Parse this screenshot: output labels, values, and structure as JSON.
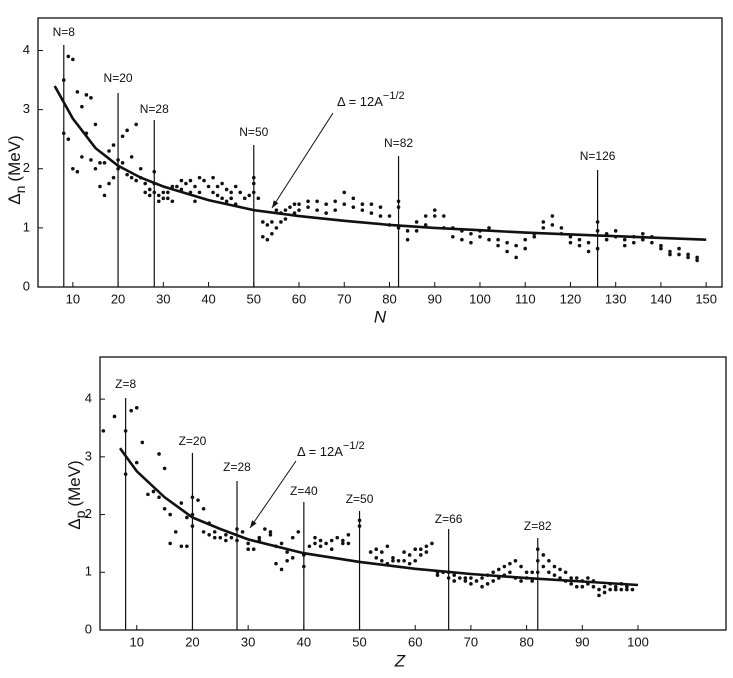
{
  "chart_data": [
    {
      "type": "scatter",
      "xlabel": "N",
      "ylabel_symbol": "Δ",
      "ylabel_subscript": "n",
      "ylabel_unit": "(MeV)",
      "xlim": [
        2.3,
        153.5
      ],
      "ylim": [
        0,
        4.55
      ],
      "xticks": [
        10,
        20,
        30,
        40,
        50,
        60,
        70,
        80,
        90,
        100,
        110,
        120,
        130,
        140,
        150
      ],
      "yticks": [
        0,
        1,
        2,
        3,
        4
      ],
      "color": "#111111",
      "x": [
        8,
        8,
        9,
        9,
        10,
        10,
        11,
        11,
        12,
        12,
        13,
        13,
        14,
        14,
        15,
        15,
        16,
        16,
        17,
        17,
        18,
        18,
        19,
        19,
        20,
        20,
        21,
        21,
        22,
        22,
        23,
        23,
        24,
        24,
        25,
        25,
        26,
        26,
        27,
        27,
        28,
        28,
        28,
        29,
        29,
        30,
        30,
        31,
        31,
        32,
        32,
        33,
        34,
        34,
        35,
        36,
        36,
        37,
        37,
        38,
        38,
        39,
        40,
        41,
        41,
        42,
        42,
        43,
        43,
        44,
        44,
        45,
        45,
        46,
        46,
        47,
        48,
        49,
        50,
        50,
        50,
        51,
        52,
        52,
        53,
        53,
        54,
        54,
        55,
        55,
        56,
        56,
        57,
        57,
        58,
        59,
        59,
        60,
        60,
        62,
        62,
        64,
        64,
        66,
        66,
        68,
        68,
        70,
        70,
        72,
        72,
        74,
        74,
        76,
        76,
        78,
        78,
        80,
        80,
        82,
        82,
        82,
        84,
        84,
        86,
        86,
        88,
        88,
        90,
        90,
        92,
        92,
        94,
        94,
        96,
        96,
        98,
        98,
        100,
        100,
        102,
        102,
        104,
        104,
        106,
        106,
        108,
        108,
        110,
        110,
        112,
        112,
        114,
        114,
        116,
        116,
        118,
        118,
        120,
        120,
        122,
        122,
        124,
        124,
        126,
        126,
        126,
        128,
        128,
        130,
        130,
        132,
        132,
        134,
        134,
        136,
        136,
        138,
        138,
        140,
        140,
        142,
        142,
        144,
        144,
        146,
        146,
        148,
        148
      ],
      "values": [
        3.5,
        2.6,
        3.9,
        2.5,
        3.85,
        2.0,
        3.3,
        1.95,
        3.05,
        2.2,
        3.25,
        2.6,
        3.2,
        2.15,
        2.75,
        2.0,
        2.1,
        1.7,
        1.55,
        2.1,
        2.3,
        1.75,
        2.4,
        1.85,
        2.15,
        2.0,
        2.55,
        2.1,
        2.65,
        1.9,
        2.2,
        1.85,
        2.75,
        1.8,
        2.0,
        1.85,
        1.6,
        1.75,
        1.55,
        1.65,
        1.95,
        1.75,
        1.6,
        1.55,
        1.45,
        1.5,
        1.6,
        1.5,
        1.6,
        1.45,
        1.7,
        1.7,
        1.65,
        1.8,
        1.75,
        1.8,
        1.6,
        1.7,
        1.45,
        1.85,
        1.6,
        1.8,
        1.7,
        1.85,
        1.6,
        1.7,
        1.55,
        1.75,
        1.5,
        1.65,
        1.45,
        1.6,
        1.5,
        1.7,
        1.4,
        1.6,
        1.5,
        1.55,
        1.85,
        1.75,
        1.6,
        1.5,
        1.1,
        0.85,
        1.05,
        0.8,
        1.1,
        0.9,
        1.3,
        1.0,
        1.25,
        1.1,
        1.3,
        1.15,
        1.35,
        1.4,
        1.25,
        1.4,
        1.3,
        1.45,
        1.35,
        1.45,
        1.3,
        1.4,
        1.25,
        1.45,
        1.3,
        1.6,
        1.4,
        1.5,
        1.35,
        1.4,
        1.3,
        1.4,
        1.25,
        1.35,
        1.2,
        1.2,
        1.05,
        1.45,
        1.35,
        1.0,
        0.95,
        0.8,
        1.1,
        0.95,
        1.2,
        1.05,
        1.3,
        1.2,
        1.2,
        1.0,
        1.0,
        0.85,
        0.95,
        0.8,
        0.9,
        0.75,
        0.95,
        0.85,
        1.0,
        0.8,
        0.8,
        0.7,
        0.75,
        0.6,
        0.7,
        0.5,
        0.8,
        0.65,
        0.85,
        0.9,
        1.1,
        1.0,
        1.2,
        1.05,
        1.0,
        0.9,
        0.85,
        0.75,
        0.8,
        0.7,
        0.75,
        0.6,
        1.1,
        0.95,
        0.65,
        0.9,
        0.8,
        0.95,
        0.85,
        0.8,
        0.7,
        0.75,
        0.85,
        0.9,
        0.8,
        0.85,
        0.75,
        0.7,
        0.65,
        0.6,
        0.55,
        0.65,
        0.55,
        0.55,
        0.5,
        0.5,
        0.45
      ],
      "curve": {
        "x": [
          6,
          10,
          15,
          20,
          25,
          30,
          40,
          50,
          60,
          70,
          80,
          90,
          100,
          110,
          120,
          130,
          140,
          150
        ],
        "values": [
          3.4,
          2.85,
          2.35,
          2.05,
          1.85,
          1.7,
          1.47,
          1.3,
          1.2,
          1.12,
          1.05,
          1.0,
          0.96,
          0.92,
          0.89,
          0.86,
          0.83,
          0.8
        ]
      },
      "magic": [
        {
          "x": 8,
          "label": "N=8"
        },
        {
          "x": 20,
          "label": "N=20"
        },
        {
          "x": 28,
          "label": "N=28"
        },
        {
          "x": 50,
          "label": "N=50"
        },
        {
          "x": 82,
          "label": "N=82"
        },
        {
          "x": 126,
          "label": "N=126"
        }
      ],
      "annotation": {
        "text": "Δ = 12A",
        "superscript": "−1/2"
      }
    },
    {
      "type": "scatter",
      "xlabel": "Z",
      "ylabel_symbol": "Δ",
      "ylabel_subscript": "p",
      "ylabel_unit": "(MeV)",
      "xlim": [
        3.4,
        115.8
      ],
      "ylim": [
        0,
        4.73
      ],
      "xticks": [
        10,
        20,
        30,
        40,
        50,
        60,
        70,
        80,
        90,
        100
      ],
      "yticks": [
        0,
        1,
        2,
        3,
        4
      ],
      "color": "#111111",
      "x": [
        4,
        6,
        8,
        8,
        9,
        10,
        10,
        11,
        12,
        13,
        14,
        14,
        15,
        15,
        16,
        16,
        17,
        18,
        18,
        19,
        19,
        20,
        20,
        20,
        21,
        22,
        22,
        23,
        23,
        24,
        24,
        25,
        26,
        26,
        27,
        28,
        28,
        29,
        30,
        30,
        31,
        32,
        32,
        33,
        34,
        34,
        35,
        35,
        36,
        36,
        37,
        37,
        38,
        38,
        39,
        40,
        40,
        41,
        42,
        42,
        43,
        43,
        44,
        45,
        45,
        46,
        47,
        47,
        48,
        48,
        50,
        50,
        52,
        53,
        53,
        54,
        54,
        55,
        55,
        56,
        56,
        57,
        58,
        58,
        59,
        59,
        60,
        60,
        61,
        61,
        62,
        62,
        63,
        64,
        64,
        65,
        66,
        66,
        67,
        67,
        68,
        69,
        69,
        70,
        70,
        71,
        72,
        72,
        73,
        73,
        74,
        74,
        75,
        75,
        76,
        76,
        77,
        77,
        78,
        78,
        79,
        79,
        80,
        80,
        81,
        81,
        82,
        82,
        82,
        83,
        83,
        84,
        84,
        85,
        85,
        86,
        86,
        87,
        87,
        88,
        88,
        89,
        89,
        90,
        90,
        91,
        91,
        92,
        92,
        93,
        93,
        94,
        94,
        95,
        95,
        96,
        96,
        97,
        97,
        98,
        98,
        99
      ],
      "values": [
        3.45,
        3.7,
        3.45,
        2.7,
        3.8,
        3.85,
        2.9,
        3.25,
        2.35,
        2.4,
        3.05,
        2.3,
        2.1,
        2.8,
        1.5,
        2.0,
        1.7,
        1.45,
        2.2,
        1.45,
        1.95,
        2.3,
        2.0,
        1.8,
        2.25,
        2.1,
        1.7,
        1.85,
        1.65,
        1.7,
        1.6,
        1.6,
        1.55,
        1.65,
        1.6,
        1.75,
        1.55,
        1.7,
        1.4,
        1.5,
        1.4,
        1.6,
        1.55,
        1.75,
        1.65,
        1.7,
        1.45,
        1.15,
        1.5,
        1.05,
        1.35,
        1.2,
        1.6,
        1.25,
        1.7,
        1.3,
        1.1,
        1.45,
        1.5,
        1.6,
        1.55,
        1.45,
        1.5,
        1.55,
        1.4,
        1.6,
        1.5,
        1.55,
        1.65,
        1.5,
        1.9,
        1.8,
        1.35,
        1.25,
        1.4,
        1.35,
        1.2,
        1.45,
        1.15,
        1.25,
        1.2,
        1.2,
        1.2,
        1.35,
        1.3,
        1.15,
        1.4,
        1.2,
        1.4,
        1.3,
        1.45,
        1.35,
        1.5,
        1.0,
        0.95,
        1.0,
        1.0,
        0.9,
        0.95,
        0.85,
        0.9,
        0.85,
        0.9,
        0.9,
        0.8,
        0.85,
        0.9,
        0.75,
        0.95,
        0.8,
        1.0,
        0.85,
        1.05,
        0.9,
        1.1,
        0.95,
        1.15,
        1.0,
        1.2,
        0.9,
        1.1,
        0.85,
        1.0,
        0.9,
        1.0,
        0.85,
        1.4,
        1.2,
        1.0,
        1.3,
        1.1,
        1.2,
        1.0,
        1.1,
        0.95,
        1.05,
        0.9,
        1.0,
        0.85,
        0.9,
        0.8,
        0.9,
        0.75,
        0.85,
        0.75,
        0.9,
        0.8,
        0.85,
        0.75,
        0.7,
        0.6,
        0.75,
        0.65,
        0.8,
        0.7,
        0.75,
        0.7,
        0.7,
        0.8,
        0.75,
        0.7,
        0.7
      ],
      "curve": {
        "x": [
          7,
          10,
          15,
          20,
          25,
          30,
          40,
          50,
          60,
          70,
          80,
          90,
          100
        ],
        "values": [
          3.15,
          2.75,
          2.3,
          1.95,
          1.75,
          1.57,
          1.33,
          1.18,
          1.06,
          0.97,
          0.9,
          0.84,
          0.78
        ]
      },
      "magic": [
        {
          "x": 8,
          "label": "Z=8"
        },
        {
          "x": 20,
          "label": "Z=20"
        },
        {
          "x": 28,
          "label": "Z=28"
        },
        {
          "x": 40,
          "label": "Z=40"
        },
        {
          "x": 50,
          "label": "Z=50"
        },
        {
          "x": 66,
          "label": "Z=66"
        },
        {
          "x": 82,
          "label": "Z=82"
        }
      ],
      "annotation": {
        "text": "Δ = 12A",
        "superscript": "−1/2"
      }
    }
  ]
}
